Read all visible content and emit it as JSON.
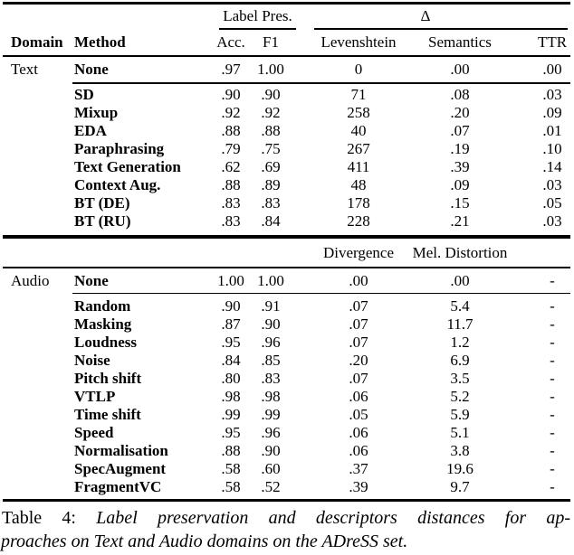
{
  "page": {
    "background": "#ffffff",
    "text_color": "#000000"
  },
  "table": {
    "header": {
      "group_label_pres": "Label Pres.",
      "group_delta": "Δ",
      "domain": "Domain",
      "method": "Method",
      "acc": "Acc.",
      "f1": "F1",
      "text_col5": "Levenshtein",
      "text_col6": "Semantics",
      "text_col7": "TTR",
      "audio_col5": "Divergence",
      "audio_col6": "Mel. Distortion"
    },
    "text_section": {
      "none": {
        "domain": "Text",
        "method": "None",
        "acc": ".97",
        "f1": "1.00",
        "c5": "0",
        "c6": ".00",
        "c7": ".00"
      },
      "rows": [
        {
          "domain": "",
          "method": "SD",
          "acc": ".90",
          "f1": ".90",
          "c5": "71",
          "c6": ".08",
          "c7": ".03"
        },
        {
          "domain": "",
          "method": "Mixup",
          "acc": ".92",
          "f1": ".92",
          "c5": "258",
          "c6": ".20",
          "c7": ".09"
        },
        {
          "domain": "",
          "method": "EDA",
          "acc": ".88",
          "f1": ".88",
          "c5": "40",
          "c6": ".07",
          "c7": ".01"
        },
        {
          "domain": "",
          "method": "Paraphrasing",
          "acc": ".79",
          "f1": ".75",
          "c5": "267",
          "c6": ".19",
          "c7": ".10"
        },
        {
          "domain": "",
          "method": "Text Generation",
          "acc": ".62",
          "f1": ".69",
          "c5": "411",
          "c6": ".39",
          "c7": ".14"
        },
        {
          "domain": "",
          "method": "Context Aug.",
          "acc": ".88",
          "f1": ".89",
          "c5": "48",
          "c6": ".09",
          "c7": ".03"
        },
        {
          "domain": "",
          "method": "BT (DE)",
          "acc": ".83",
          "f1": ".83",
          "c5": "178",
          "c6": ".15",
          "c7": ".05"
        },
        {
          "domain": "",
          "method": "BT (RU)",
          "acc": ".83",
          "f1": ".84",
          "c5": "228",
          "c6": ".21",
          "c7": ".03"
        }
      ]
    },
    "audio_section": {
      "none": {
        "domain": "Audio",
        "method": "None",
        "acc": "1.00",
        "f1": "1.00",
        "c5": ".00",
        "c6": ".00",
        "c7": "-"
      },
      "rows": [
        {
          "domain": "",
          "method": "Random",
          "acc": ".90",
          "f1": ".91",
          "c5": ".07",
          "c6": "5.4",
          "c7": "-"
        },
        {
          "domain": "",
          "method": "Masking",
          "acc": ".87",
          "f1": ".90",
          "c5": ".07",
          "c6": "11.7",
          "c7": "-"
        },
        {
          "domain": "",
          "method": "Loudness",
          "acc": ".95",
          "f1": ".96",
          "c5": ".07",
          "c6": "1.2",
          "c7": "-"
        },
        {
          "domain": "",
          "method": "Noise",
          "acc": ".84",
          "f1": ".85",
          "c5": ".20",
          "c6": "6.9",
          "c7": "-"
        },
        {
          "domain": "",
          "method": "Pitch shift",
          "acc": ".80",
          "f1": ".83",
          "c5": ".07",
          "c6": "3.5",
          "c7": "-"
        },
        {
          "domain": "",
          "method": "VTLP",
          "acc": ".98",
          "f1": ".98",
          "c5": ".06",
          "c6": "5.2",
          "c7": "-"
        },
        {
          "domain": "",
          "method": "Time shift",
          "acc": ".99",
          "f1": ".99",
          "c5": ".05",
          "c6": "5.9",
          "c7": "-"
        },
        {
          "domain": "",
          "method": "Speed",
          "acc": ".95",
          "f1": ".96",
          "c5": ".06",
          "c6": "5.1",
          "c7": "-"
        },
        {
          "domain": "",
          "method": "Normalisation",
          "acc": ".88",
          "f1": ".90",
          "c5": ".06",
          "c6": "3.8",
          "c7": "-"
        },
        {
          "domain": "",
          "method": "SpecAugment",
          "acc": ".58",
          "f1": ".60",
          "c5": ".37",
          "c6": "19.6",
          "c7": "-"
        },
        {
          "domain": "",
          "method": "FragmentVC",
          "acc": ".58",
          "f1": ".52",
          "c5": ".39",
          "c6": "9.7",
          "c7": "-"
        }
      ]
    }
  },
  "caption": {
    "label": "Table 4:",
    "line1_italic": "Label preservation and descriptors distances for ap-",
    "line2_italic": "proaches on Text and Audio domains on the ADreSS set."
  }
}
